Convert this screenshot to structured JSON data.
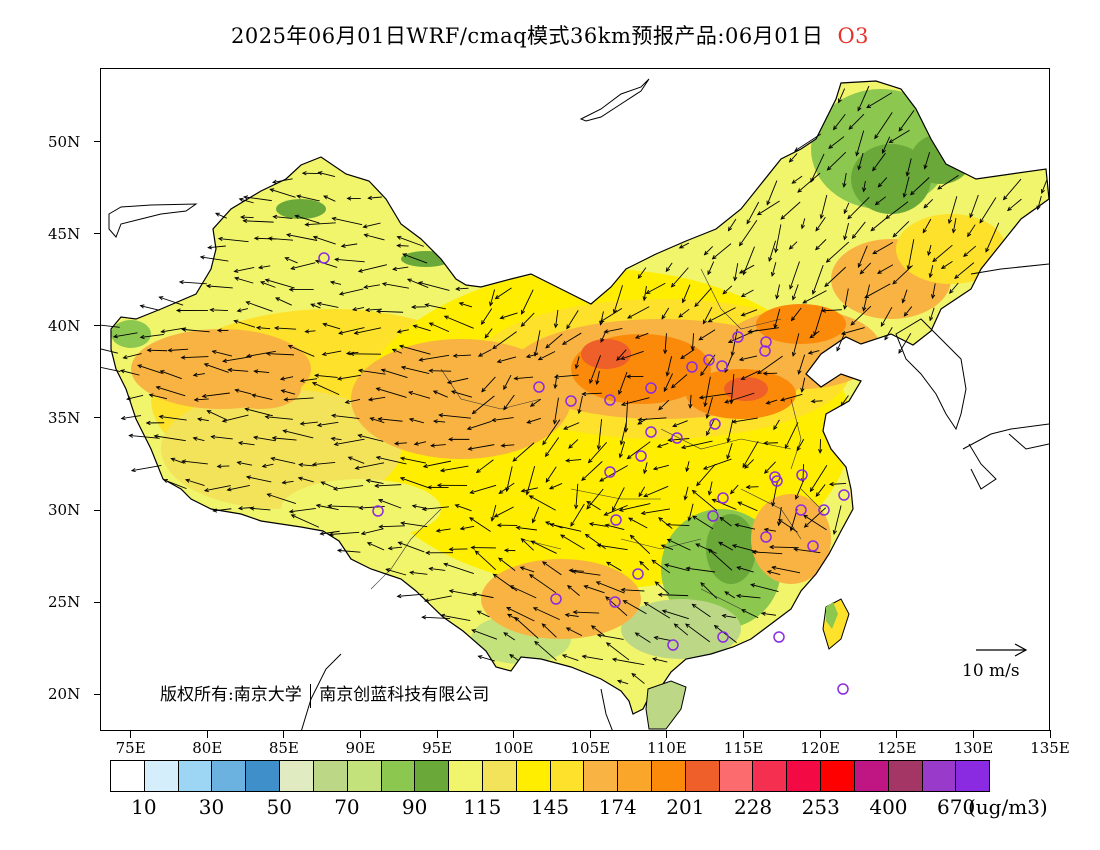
{
  "title": {
    "main": "2025年06月01日WRF/cmaq模式36km预报产品:06月01日",
    "species": "O3",
    "species_color": "#e8322c"
  },
  "map": {
    "lon_range": [
      73,
      135
    ],
    "lat_range": [
      18,
      54
    ],
    "x_ticks": [
      "75E",
      "80E",
      "85E",
      "90E",
      "95E",
      "100E",
      "105E",
      "110E",
      "115E",
      "120E",
      "125E",
      "130E",
      "135E"
    ],
    "y_ticks": [
      "50N",
      "45N",
      "40N",
      "35N",
      "30N",
      "25N",
      "20N"
    ],
    "reference_vector_label": "10 m/s",
    "copyright_left": "版权所有:南京大学",
    "copyright_right": "南京创蓝科技有限公司",
    "station_marker_color": "#8a2be2"
  },
  "legend": {
    "colors": [
      "#ffffff",
      "#d4eefb",
      "#9dd6f5",
      "#6cb2e0",
      "#3f8fcb",
      "#e1ebc1",
      "#bcd887",
      "#c3e27b",
      "#8cc84f",
      "#6aa83a",
      "#f1f56b",
      "#f2e35a",
      "#ffee00",
      "#fde12b",
      "#f8b342",
      "#f9a62a",
      "#fb8a0a",
      "#ee5f2a",
      "#fc6b6e",
      "#f52f4f",
      "#f30a45",
      "#ff0000",
      "#c01683",
      "#a33664",
      "#9a3acb",
      "#8a2be2"
    ],
    "labels": [
      "10",
      "30",
      "50",
      "70",
      "90",
      "115",
      "145",
      "174",
      "201",
      "228",
      "253",
      "400",
      "670"
    ],
    "unit": "(ug/m3)"
  }
}
